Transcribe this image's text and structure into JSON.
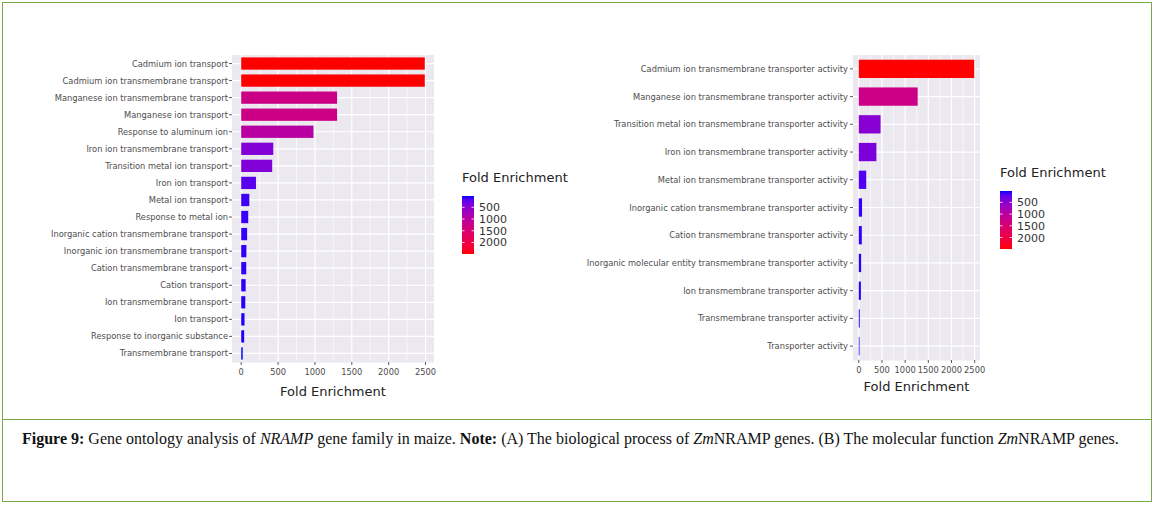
{
  "chart_data": [
    {
      "type": "bar",
      "orientation": "horizontal",
      "grid": true,
      "categories": [
        "Cadmium ion transport",
        "Cadmium ion transmembrane transport",
        "Manganese ion transmembrane transport",
        "Manganese ion transport",
        "Response to aluminum ion",
        "Iron ion transmembrane transport",
        "Transition metal ion transport",
        "Iron ion transport",
        "Metal ion transport",
        "Response to metal ion",
        "Inorganic cation transmembrane transport",
        "Inorganic ion transmembrane transport",
        "Cation transmembrane transport",
        "Cation transport",
        "Ion transmembrane transport",
        "Ion transport",
        "Response to inorganic substance",
        "Transmembrane transport"
      ],
      "values": [
        2490,
        2490,
        1300,
        1300,
        980,
        435,
        420,
        200,
        110,
        95,
        80,
        70,
        68,
        60,
        55,
        45,
        40,
        20
      ],
      "x_label": "Fold Enrichment",
      "xlim": [
        -125,
        2615
      ],
      "xticks": [
        0,
        500,
        1000,
        1500,
        2000,
        2500
      ],
      "colorbar": {
        "title": "Fold Enrichment",
        "range": [
          20,
          2490
        ],
        "ticks": [
          500,
          1000,
          1500,
          2000
        ],
        "low": "#0000ff",
        "high": "#ff0000"
      }
    },
    {
      "type": "bar",
      "orientation": "horizontal",
      "grid": true,
      "categories": [
        "Cadmium ion transmembrane transporter activity",
        "Manganese ion transmembrane transporter activity",
        "Transition metal ion transmembrane transporter activity",
        "Iron ion transmembrane transporter activity",
        "Metal ion transmembrane transporter activity",
        "Inorganic cation transmembrane transporter activity",
        "Cation transmembrane transporter activity",
        "Inorganic molecular entity transmembrane transporter activity",
        "Ion transmembrane transporter activity",
        "Transmembrane transporter activity",
        "Transporter activity"
      ],
      "values": [
        2490,
        1270,
        470,
        380,
        160,
        70,
        65,
        50,
        45,
        20,
        15
      ],
      "x_label": "Fold Enrichment",
      "xlim": [
        -125,
        2615
      ],
      "xticks": [
        0,
        500,
        1000,
        1500,
        2000,
        2500
      ],
      "colorbar": {
        "title": "Fold Enrichment",
        "range": [
          15,
          2490
        ],
        "ticks": [
          500,
          1000,
          1500,
          2000
        ],
        "low": "#0000ff",
        "high": "#ff0000"
      }
    }
  ],
  "caption": [
    "Figure 9:",
    " Gene ontology analysis of ",
    "NRAMP",
    " gene family in maize. ",
    "Note:",
    " (A) The biological process of ",
    "Zm",
    "NRAMP genes. (B) The molecular function ",
    "Zm",
    "NRAMP genes."
  ]
}
